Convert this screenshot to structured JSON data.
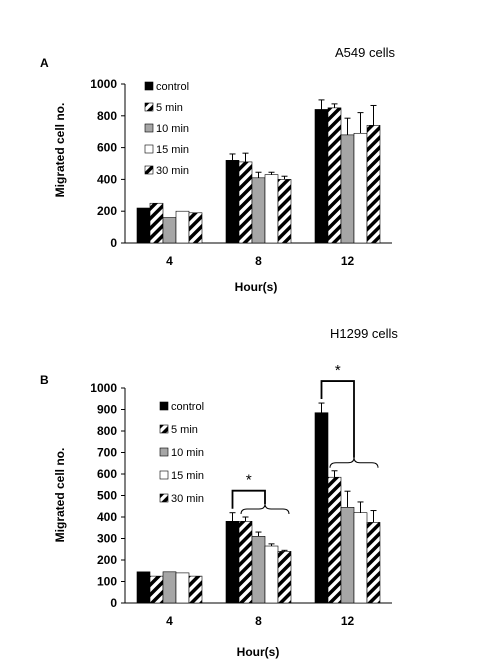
{
  "chart_data": [
    {
      "type": "bar",
      "panel_label": "A",
      "title": "A549 cells",
      "xlabel": "Hour(s)",
      "ylabel": "Migrated cell no.",
      "categories": [
        "4",
        "8",
        "12"
      ],
      "ylim": [
        0,
        1000
      ],
      "yticks": [
        "0",
        "200",
        "400",
        "600",
        "800",
        "1000"
      ],
      "legend_position": "top-left",
      "series": [
        {
          "name": "control",
          "fill": "#000000",
          "values": [
            220,
            520,
            840
          ],
          "errors": [
            0,
            40,
            60
          ]
        },
        {
          "name": "5 min",
          "fill": "diagonal-stripes",
          "values": [
            250,
            510,
            850
          ],
          "errors": [
            0,
            55,
            25
          ]
        },
        {
          "name": "10 min",
          "fill": "#a6a6a6",
          "values": [
            160,
            410,
            680
          ],
          "errors": [
            0,
            35,
            105
          ]
        },
        {
          "name": "15 min",
          "fill": "#ffffff",
          "values": [
            200,
            430,
            690
          ],
          "errors": [
            0,
            15,
            130
          ]
        },
        {
          "name": "30 min",
          "fill": "diagonal-stripes",
          "values": [
            190,
            400,
            740
          ],
          "errors": [
            0,
            20,
            125
          ]
        }
      ]
    },
    {
      "type": "bar",
      "panel_label": "B",
      "title": "H1299 cells",
      "xlabel": "Hour(s)",
      "ylabel": "Migrated cell no.",
      "categories": [
        "4",
        "8",
        "12"
      ],
      "ylim": [
        0,
        1000
      ],
      "yticks": [
        "0",
        "100",
        "200",
        "300",
        "400",
        "500",
        "600",
        "700",
        "800",
        "900",
        "1000"
      ],
      "legend_position": "top-left",
      "series": [
        {
          "name": "control",
          "fill": "#000000",
          "values": [
            145,
            380,
            885
          ],
          "errors": [
            0,
            40,
            45
          ]
        },
        {
          "name": "5 min",
          "fill": "diagonal-stripes",
          "values": [
            125,
            380,
            585
          ],
          "errors": [
            0,
            20,
            30
          ]
        },
        {
          "name": "10 min",
          "fill": "#a6a6a6",
          "values": [
            145,
            310,
            445
          ],
          "errors": [
            0,
            20,
            75
          ]
        },
        {
          "name": "15 min",
          "fill": "#ffffff",
          "values": [
            140,
            265,
            420
          ],
          "errors": [
            0,
            10,
            50
          ]
        },
        {
          "name": "30 min",
          "fill": "diagonal-stripes",
          "values": [
            125,
            240,
            375
          ],
          "errors": [
            0,
            5,
            55
          ]
        }
      ],
      "annotations": [
        {
          "text": "*",
          "category": "8"
        },
        {
          "text": "*",
          "category": "12"
        }
      ]
    }
  ]
}
